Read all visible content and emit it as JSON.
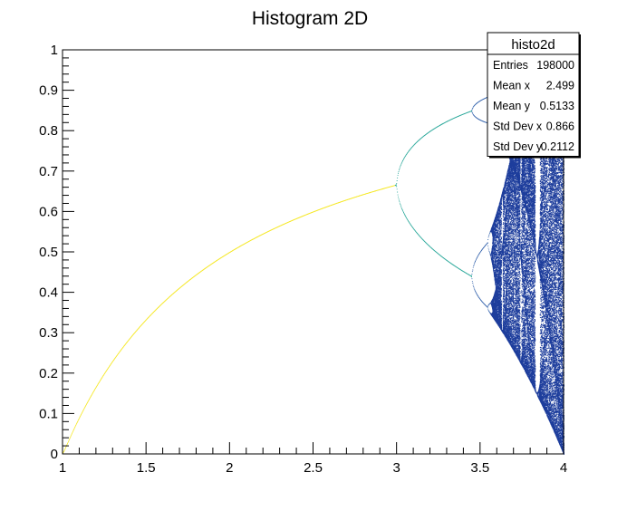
{
  "chart_data": {
    "type": "heatmap",
    "title": "Histogram 2D",
    "xlabel": "",
    "ylabel": "",
    "xlim": [
      1,
      4
    ],
    "ylim": [
      0,
      1
    ],
    "x_ticks": [
      "1",
      "1.5",
      "2",
      "2.5",
      "3",
      "3.5",
      "4"
    ],
    "y_ticks": [
      "0",
      "0.1",
      "0.2",
      "0.3",
      "0.4",
      "0.5",
      "0.6",
      "0.7",
      "0.8",
      "0.9",
      "1"
    ],
    "grid": false,
    "legend": "none",
    "colors": {
      "period1": "#f5e71e",
      "period2": "#2aa89a",
      "period4": "#2f5faa",
      "chaos": "#1d3d9c"
    },
    "stats_box": {
      "title": "histo2d",
      "placement": "top-right",
      "rows": [
        {
          "name": "Entries",
          "value": "198000"
        },
        {
          "name": "Mean x",
          "value": "2.499"
        },
        {
          "name": "Mean y",
          "value": "0.5133"
        },
        {
          "name": "Std Dev x",
          "value": "0.866"
        },
        {
          "name": "Std Dev y",
          "value": "0.2112"
        }
      ]
    }
  }
}
